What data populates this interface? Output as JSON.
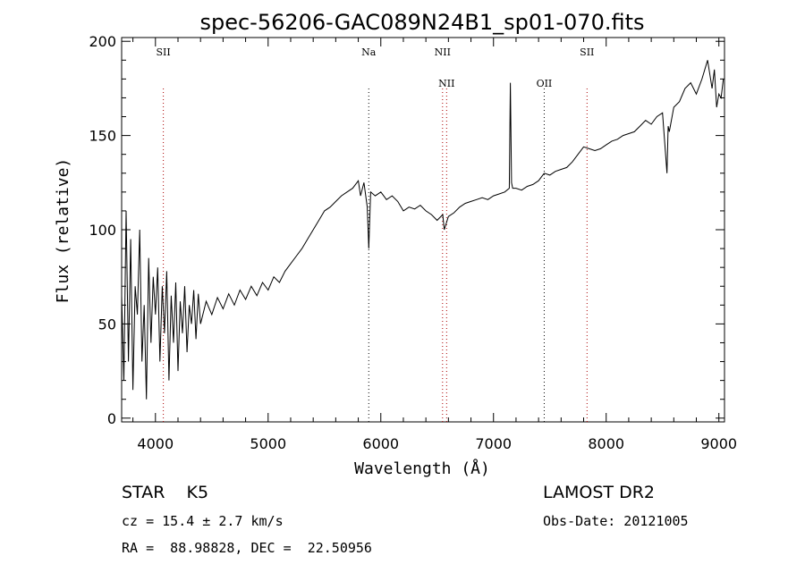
{
  "chart_data": {
    "type": "line",
    "title": "spec-56206-GAC089N24B1_sp01-070.fits",
    "xlabel": "Wavelength (Å)",
    "ylabel": "Flux (relative)",
    "xlim": [
      3700,
      9050
    ],
    "ylim": [
      -2,
      202
    ],
    "xticks": [
      4000,
      5000,
      6000,
      7000,
      8000,
      9000
    ],
    "yticks": [
      0,
      50,
      100,
      150,
      200
    ],
    "series": [
      {
        "name": "flux",
        "x": [
          3700,
          3720,
          3740,
          3760,
          3780,
          3800,
          3820,
          3840,
          3860,
          3880,
          3900,
          3920,
          3940,
          3960,
          3980,
          4000,
          4020,
          4040,
          4060,
          4080,
          4100,
          4120,
          4140,
          4160,
          4180,
          4200,
          4220,
          4240,
          4260,
          4280,
          4300,
          4320,
          4340,
          4360,
          4380,
          4400,
          4450,
          4500,
          4550,
          4600,
          4650,
          4700,
          4750,
          4800,
          4850,
          4900,
          4950,
          5000,
          5050,
          5100,
          5150,
          5200,
          5250,
          5300,
          5350,
          5400,
          5450,
          5500,
          5550,
          5600,
          5650,
          5700,
          5750,
          5800,
          5820,
          5850,
          5880,
          5893,
          5910,
          5950,
          6000,
          6050,
          6100,
          6150,
          6200,
          6250,
          6300,
          6350,
          6400,
          6450,
          6500,
          6550,
          6563,
          6600,
          6650,
          6700,
          6750,
          6800,
          6850,
          6900,
          6950,
          7000,
          7050,
          7100,
          7140,
          7150,
          7160,
          7170,
          7200,
          7250,
          7300,
          7350,
          7400,
          7450,
          7500,
          7550,
          7600,
          7650,
          7700,
          7750,
          7800,
          7850,
          7900,
          7950,
          8000,
          8050,
          8100,
          8150,
          8200,
          8250,
          8300,
          8350,
          8400,
          8450,
          8500,
          8540,
          8550,
          8560,
          8600,
          8650,
          8700,
          8750,
          8800,
          8850,
          8900,
          8940,
          8960,
          8980,
          9000,
          9020,
          9040
        ],
        "values": [
          65,
          20,
          110,
          30,
          95,
          15,
          70,
          55,
          100,
          30,
          60,
          10,
          85,
          40,
          75,
          55,
          80,
          30,
          70,
          45,
          78,
          20,
          65,
          40,
          72,
          25,
          62,
          45,
          70,
          35,
          60,
          50,
          68,
          42,
          66,
          50,
          62,
          55,
          64,
          58,
          66,
          60,
          68,
          63,
          70,
          65,
          72,
          68,
          75,
          72,
          78,
          82,
          86,
          90,
          95,
          100,
          105,
          110,
          112,
          115,
          118,
          120,
          122,
          126,
          118,
          125,
          112,
          90,
          120,
          118,
          120,
          116,
          118,
          115,
          110,
          112,
          111,
          113,
          110,
          108,
          105,
          108,
          100,
          107,
          109,
          112,
          114,
          115,
          116,
          117,
          116,
          118,
          119,
          120,
          122,
          178,
          125,
          122,
          122,
          121,
          123,
          124,
          126,
          130,
          129,
          131,
          132,
          133,
          136,
          140,
          144,
          143,
          142,
          143,
          145,
          147,
          148,
          150,
          151,
          152,
          155,
          158,
          156,
          160,
          162,
          130,
          155,
          152,
          165,
          168,
          175,
          178,
          172,
          180,
          190,
          175,
          185,
          165,
          172,
          170,
          180
        ]
      }
    ],
    "spectral_lines": [
      {
        "label": "SII",
        "x": 4070,
        "color": "#aa0000",
        "row": 1
      },
      {
        "label": "Na",
        "x": 5893,
        "color": "#000000",
        "row": 1
      },
      {
        "label": "NII",
        "x": 6548,
        "color": "#aa0000",
        "row": 1
      },
      {
        "label": "NII",
        "x": 6584,
        "color": "#aa0000",
        "row": 2
      },
      {
        "label": "OII",
        "x": 7450,
        "color": "#000000",
        "row": 2
      },
      {
        "label": "SII",
        "x": 7830,
        "color": "#aa0000",
        "row": 1
      }
    ]
  },
  "info": {
    "class": "STAR    K5",
    "survey": "LAMOST DR2",
    "cz": "cz = 15.4 ± 2.7 km/s",
    "obs_date": "Obs-Date: 20121005",
    "radec": "RA =  88.98828, DEC =  22.50956"
  }
}
